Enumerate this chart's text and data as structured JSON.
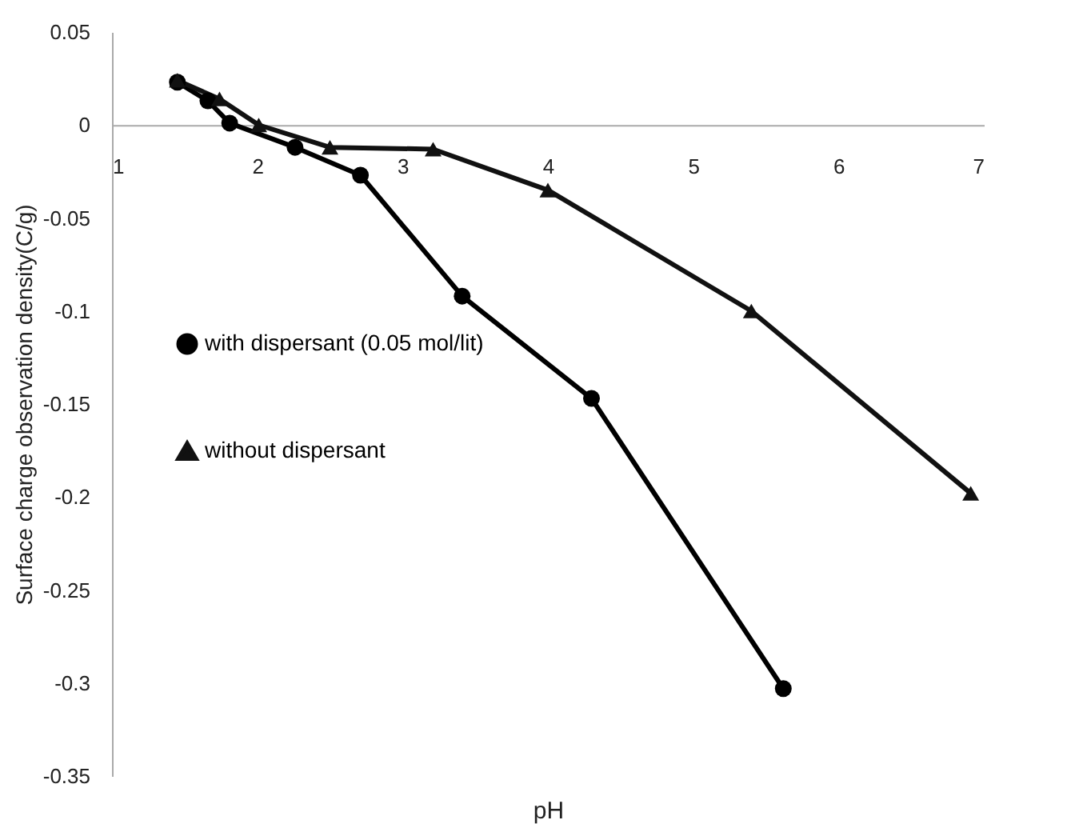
{
  "chart_data": {
    "type": "line",
    "xlabel": "pH",
    "ylabel": "Surface charge observation density(C/g)",
    "xlim": [
      1,
      7
    ],
    "xticks": [
      1,
      2,
      3,
      4,
      5,
      6,
      7
    ],
    "ylim": [
      -0.35,
      0.05
    ],
    "yticks": [
      0.05,
      0,
      -0.05,
      -0.1,
      -0.15,
      -0.2,
      -0.25,
      -0.3,
      -0.35
    ],
    "legend": "left",
    "grid": false,
    "line_style": "solid",
    "series": [
      {
        "name": "with dispersant (0.05 mol/lit)",
        "color": "#000000",
        "marker": "circle",
        "x": [
          1.45,
          1.66,
          1.81,
          2.26,
          2.71,
          3.41,
          4.3,
          5.62
        ],
        "values": [
          0.023,
          0.013,
          0.001,
          -0.012,
          -0.027,
          -0.092,
          -0.147,
          -0.303
        ]
      },
      {
        "name": "without dispersant",
        "color": "#111111",
        "marker": "triangle",
        "x": [
          1.45,
          1.74,
          2.01,
          2.5,
          3.21,
          4.0,
          5.4,
          6.91
        ],
        "values": [
          0.024,
          0.014,
          0.0,
          -0.012,
          -0.013,
          -0.035,
          -0.1,
          -0.198
        ]
      }
    ]
  }
}
